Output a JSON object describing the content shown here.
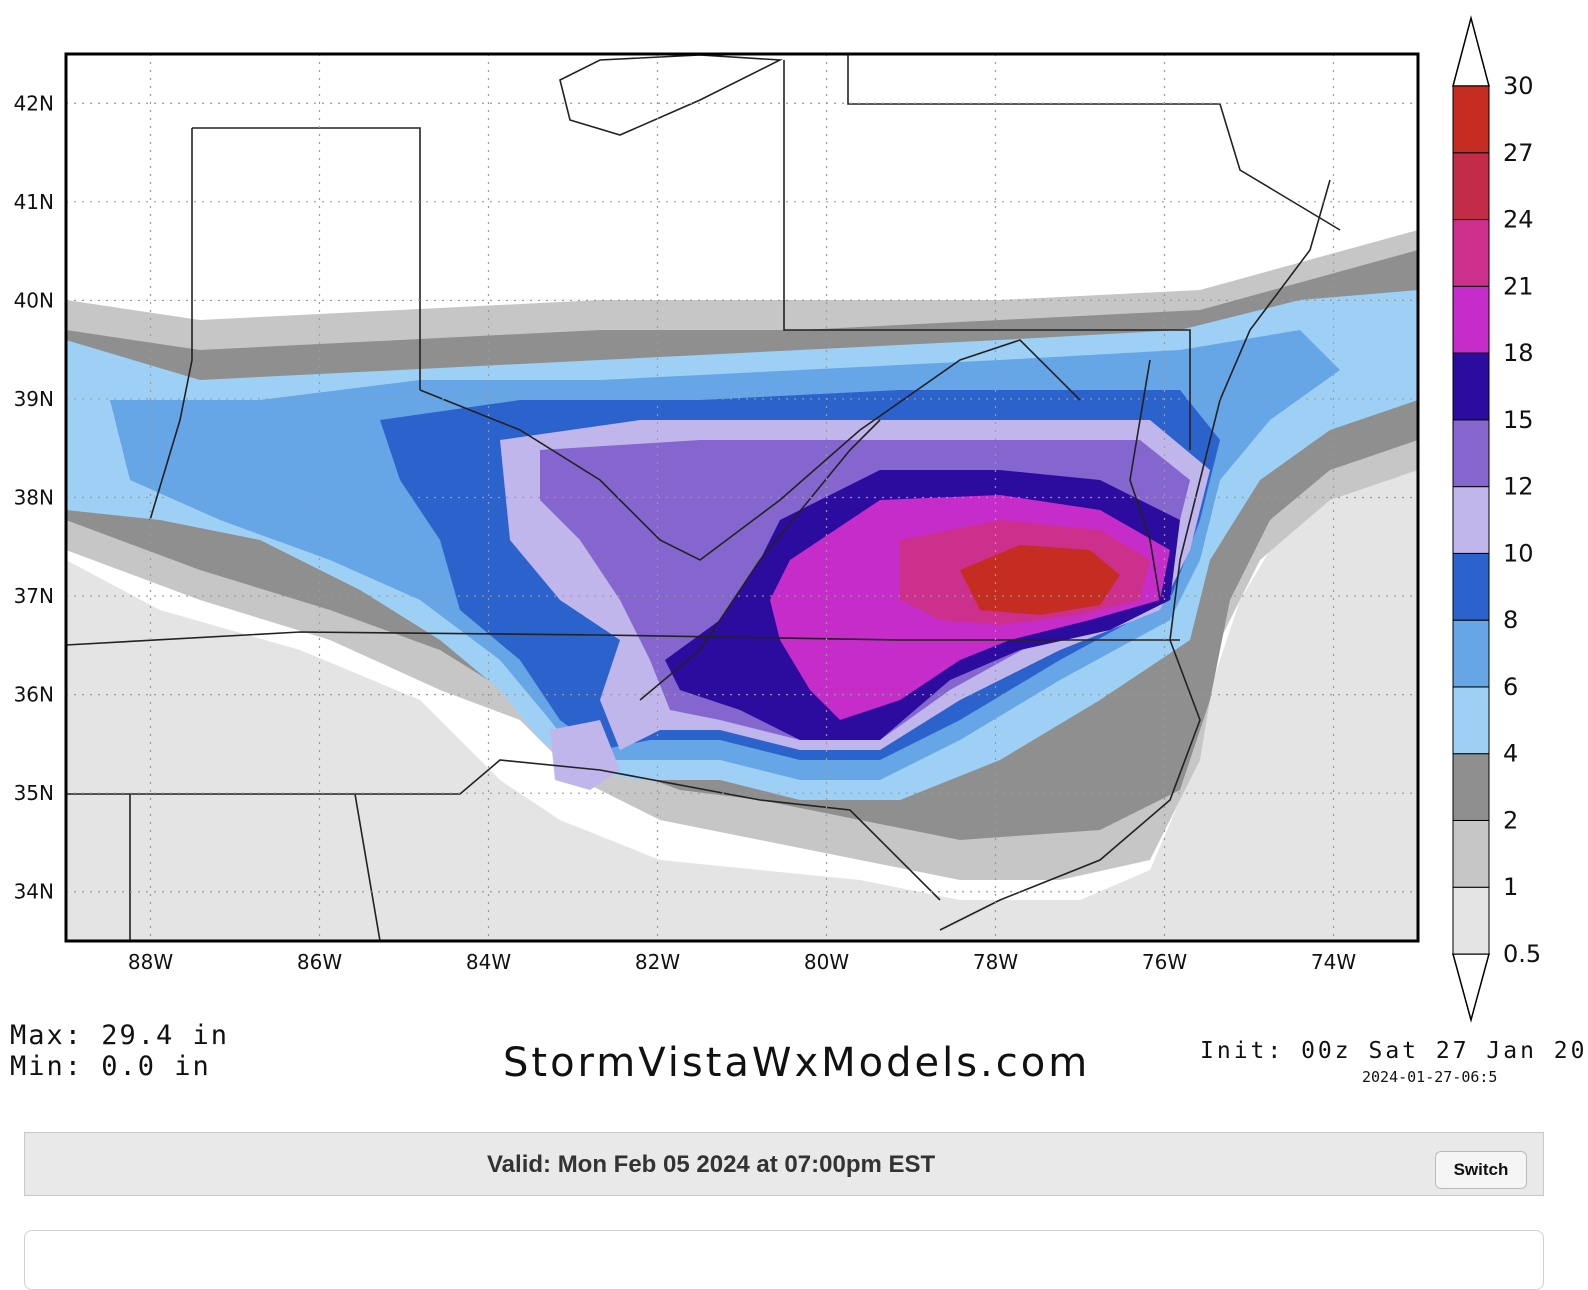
{
  "map": {
    "lat_labels": [
      "42N",
      "41N",
      "40N",
      "39N",
      "38N",
      "37N",
      "36N",
      "35N",
      "34N"
    ],
    "lon_labels": [
      "88W",
      "86W",
      "84W",
      "82W",
      "80W",
      "78W",
      "76W",
      "74W"
    ],
    "lat_range": [
      33.5,
      42.5
    ],
    "lon_range": [
      -89.0,
      -73.0
    ],
    "colorbar": {
      "levels": [
        "0.5",
        "1",
        "2",
        "4",
        "6",
        "8",
        "10",
        "12",
        "15",
        "18",
        "21",
        "24",
        "27",
        "30"
      ],
      "colors": [
        "#e4e4e4",
        "#c6c6c6",
        "#8f8f8f",
        "#9ed0f5",
        "#66a5e6",
        "#2c62cc",
        "#c0b6ec",
        "#8566cf",
        "#2c0c9e",
        "#c62cc9",
        "#cd2f8c",
        "#c22c48",
        "#c52c22"
      ]
    },
    "regions": {
      "light_gray": "#e4e4e4",
      "mid_gray": "#c6c6c6",
      "dark_gray": "#8f8f8f",
      "light_blue": "#9ed0f5",
      "med_blue": "#66a5e6",
      "blue": "#2c62cc",
      "lavender": "#c0b6ec",
      "purple": "#8566cf",
      "indigo": "#2c0c9e",
      "magenta": "#c62cc9",
      "pink": "#cd2f8c",
      "red": "#c52c22"
    }
  },
  "stats": {
    "max": "Max: 29.4 in",
    "min": "Min: 0.0 in"
  },
  "brand": "StormVistaWxModels.com",
  "init": "Init: 00z Sat 27 Jan 20",
  "timestamp": "2024-01-27-06:5",
  "valid": "Valid: Mon Feb 05 2024 at 07:00pm EST",
  "switch_label": "Switch"
}
